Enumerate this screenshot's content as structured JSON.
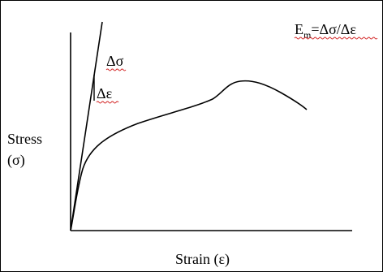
{
  "diagram": {
    "ylabel_line1": "Stress",
    "ylabel_line2": "(σ)",
    "xlabel": "Strain (ε)",
    "delta_sigma": "Δσ",
    "delta_epsilon": "Δε",
    "formula_E": "E",
    "formula_subscript": "m",
    "formula_rhs": "=Δσ/Δε"
  },
  "colors": {
    "stroke": "#000000",
    "background": "#ffffff",
    "spellcheck_underline": "#d22020"
  }
}
